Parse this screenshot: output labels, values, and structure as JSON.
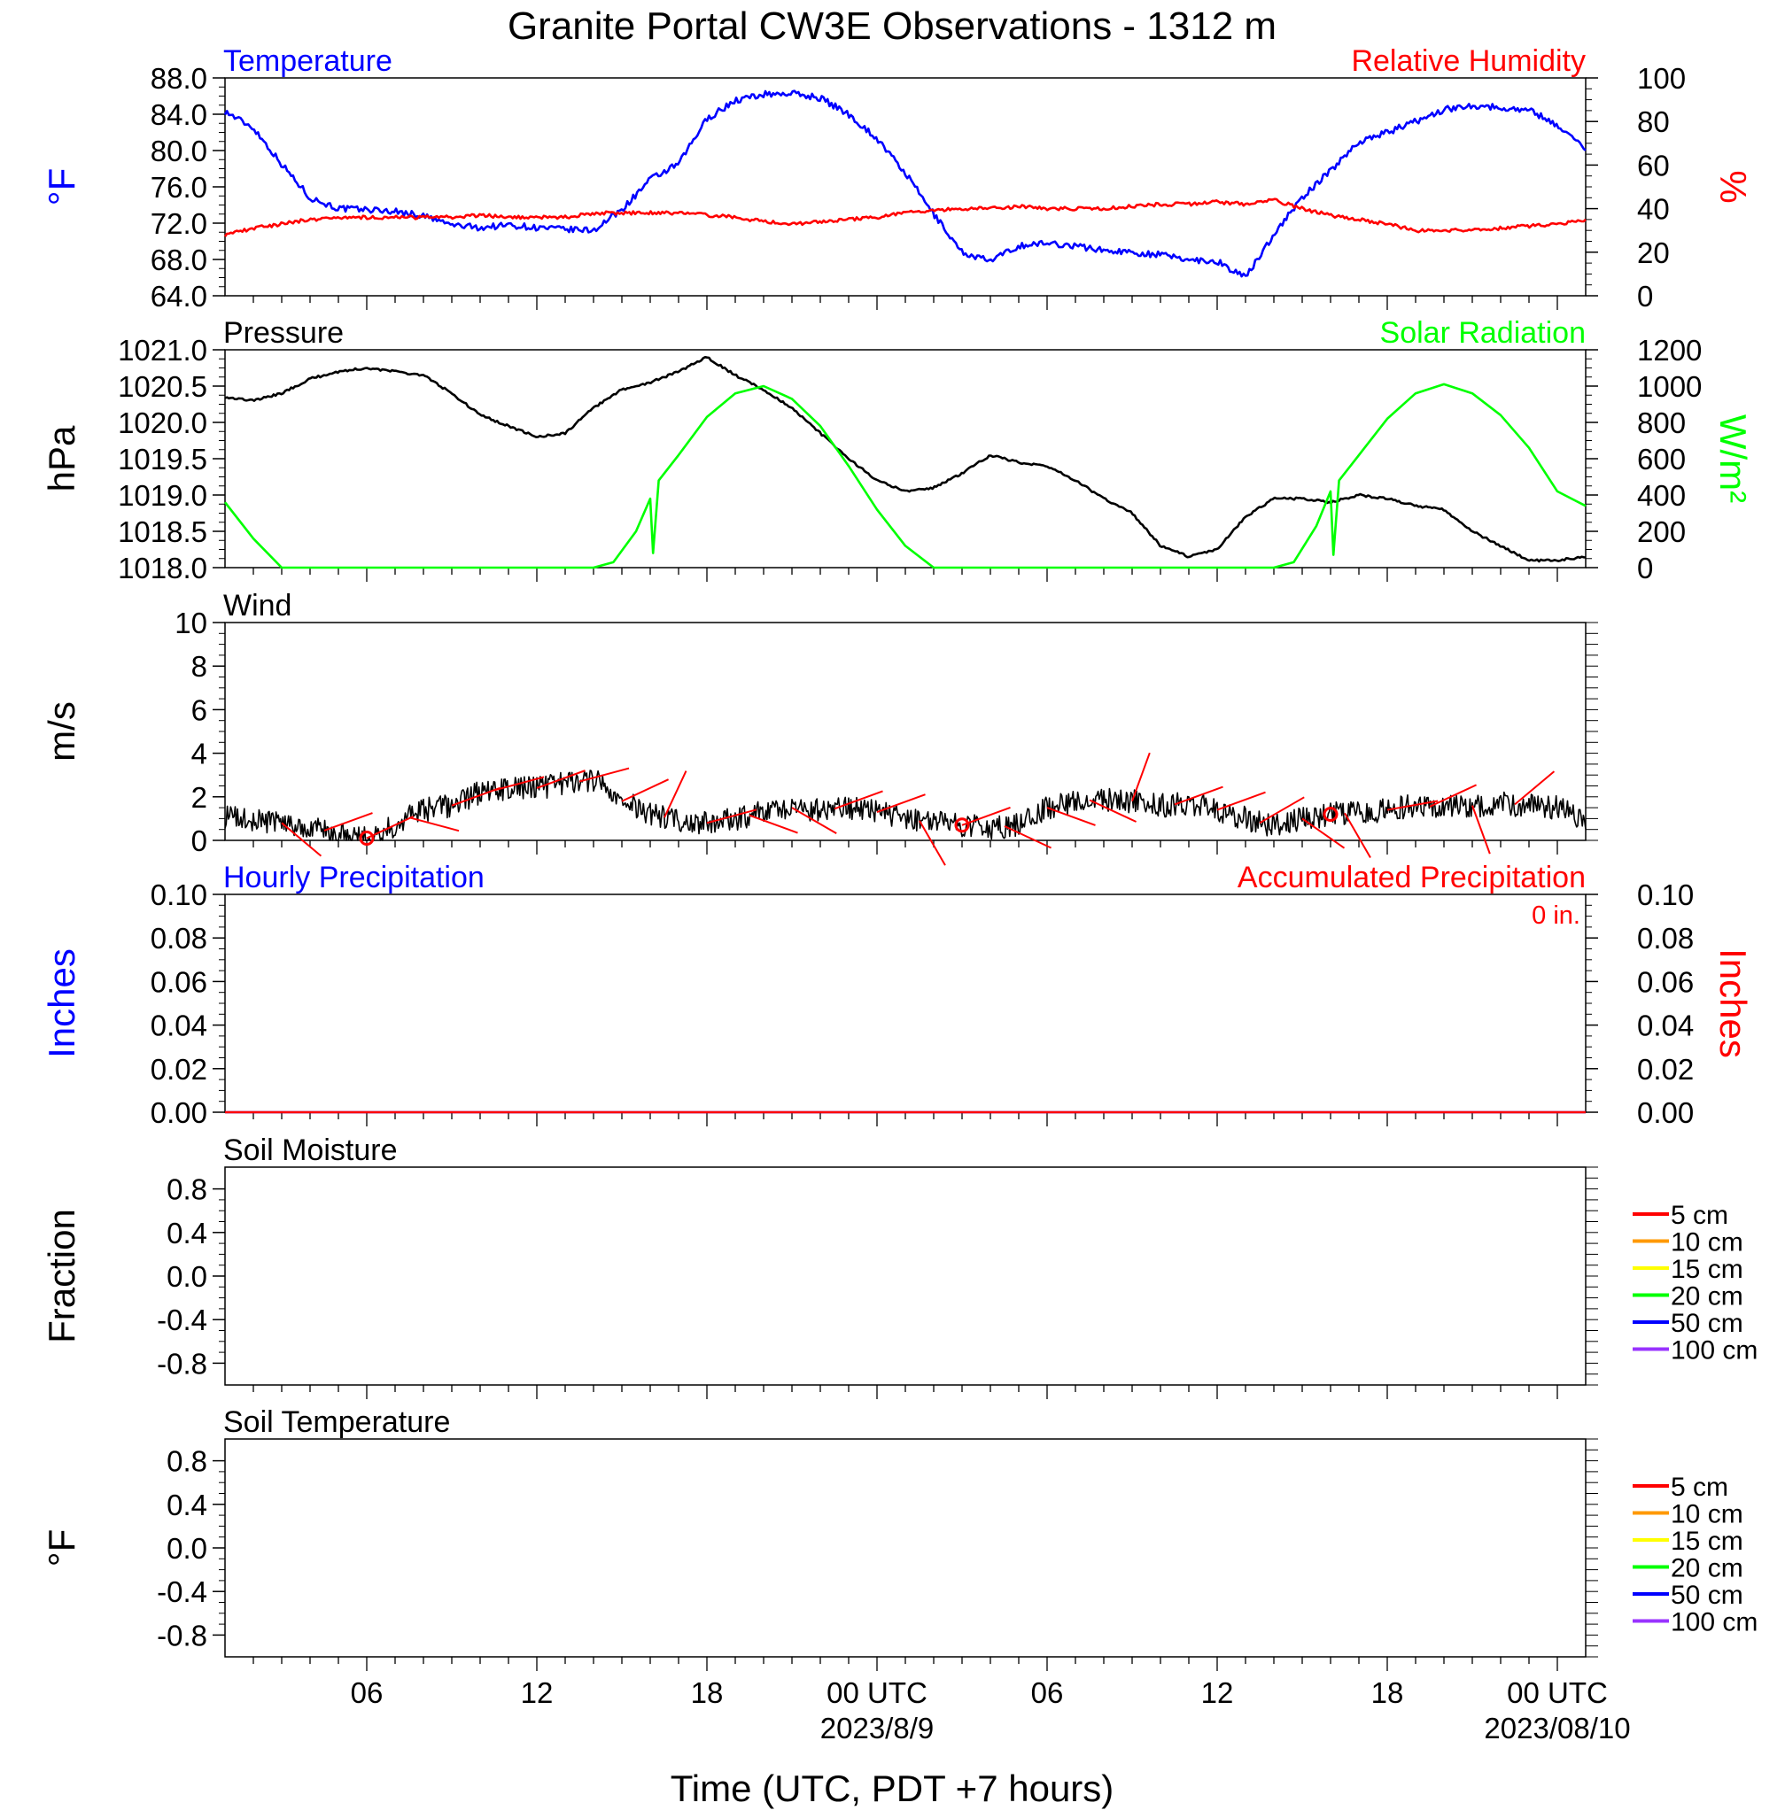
{
  "title": "Granite Portal CW3E Observations - 1312 m",
  "xlabel": "Time (UTC, PDT +7 hours)",
  "x_ticks": [
    {
      "hour": 5,
      "label": "06",
      "sub": ""
    },
    {
      "hour": 11,
      "label": "12",
      "sub": ""
    },
    {
      "hour": 17,
      "label": "18",
      "sub": ""
    },
    {
      "hour": 23,
      "label": "00 UTC",
      "sub": "2023/8/9"
    },
    {
      "hour": 29,
      "label": "06",
      "sub": ""
    },
    {
      "hour": 35,
      "label": "12",
      "sub": ""
    },
    {
      "hour": 41,
      "label": "18",
      "sub": ""
    },
    {
      "hour": 47,
      "label": "00 UTC",
      "sub": "2023/08/10"
    }
  ],
  "colors": {
    "temperature": "#0000ff",
    "humidity": "#ff0000",
    "pressure": "#000000",
    "solar": "#00ff00",
    "wind": "#000000",
    "barbs": "#ff0000",
    "precip_hourly": "#0000ff",
    "precip_accum": "#ff0000"
  },
  "chart_data": [
    {
      "type": "line",
      "panel": "temperature-humidity",
      "title_left": "Temperature",
      "title_right": "Relative Humidity",
      "ylabel_left": "°F",
      "ylabel_right": "%",
      "xlim": [
        0,
        48
      ],
      "ylim_left": [
        64.0,
        88.0
      ],
      "ylim_right": [
        0,
        100
      ],
      "ticks_left": [
        "64.0",
        "68.0",
        "72.0",
        "76.0",
        "80.0",
        "84.0",
        "88.0"
      ],
      "ticks_right": [
        "0",
        "20",
        "40",
        "60",
        "80",
        "100"
      ],
      "series": [
        {
          "name": "Temperature",
          "axis": "left",
          "x": [
            0,
            1,
            2,
            3,
            4,
            5,
            6,
            7,
            8,
            9,
            10,
            11,
            12,
            13,
            14,
            15,
            16,
            17,
            18,
            19,
            20,
            21,
            22,
            23,
            24,
            25,
            26,
            27,
            28,
            29,
            30,
            31,
            32,
            33,
            34,
            35,
            36,
            37,
            38,
            39,
            40,
            41,
            42,
            43,
            44,
            45,
            46,
            47,
            48
          ],
          "y": [
            84.3,
            82.5,
            78.5,
            74.8,
            73.6,
            73.5,
            73.3,
            72.8,
            71.8,
            71.5,
            71.8,
            71.5,
            71.3,
            71.2,
            73.5,
            76.8,
            78.5,
            83.5,
            85.5,
            86.2,
            86.3,
            85.8,
            84.0,
            81.3,
            77.5,
            73.0,
            68.8,
            67.8,
            69.5,
            69.8,
            69.5,
            69.0,
            68.8,
            68.5,
            68.0,
            67.8,
            66.0,
            70.8,
            74.8,
            77.8,
            81.0,
            82.0,
            83.2,
            84.5,
            85.0,
            84.7,
            84.5,
            82.8,
            80.2
          ]
        },
        {
          "name": "Relative Humidity",
          "axis": "right",
          "x": [
            0,
            1,
            2,
            3,
            4,
            5,
            6,
            7,
            8,
            9,
            10,
            11,
            12,
            13,
            14,
            15,
            16,
            17,
            18,
            19,
            20,
            21,
            22,
            23,
            24,
            25,
            26,
            27,
            28,
            29,
            30,
            31,
            32,
            33,
            34,
            35,
            36,
            37,
            38,
            39,
            40,
            41,
            42,
            43,
            44,
            45,
            46,
            47,
            48
          ],
          "y": [
            28,
            31,
            33,
            35,
            36,
            36,
            36,
            36,
            36,
            37,
            36,
            36,
            36,
            38,
            38,
            38,
            38,
            37,
            36,
            34,
            33,
            34,
            35,
            36,
            38,
            39,
            40,
            40,
            41,
            40,
            40,
            40,
            41,
            42,
            42,
            43,
            42,
            44,
            40,
            37,
            35,
            33,
            30,
            30,
            30,
            31,
            32,
            33,
            35
          ]
        }
      ]
    },
    {
      "type": "line",
      "panel": "pressure-solar",
      "title_left": "Pressure",
      "title_right": "Solar Radiation",
      "ylabel_left": "hPa",
      "ylabel_right": "W/m²",
      "xlim": [
        0,
        48
      ],
      "ylim_left": [
        1018.0,
        1021.0
      ],
      "ylim_right": [
        0,
        1200
      ],
      "ticks_left": [
        "1018.0",
        "1018.5",
        "1019.0",
        "1019.5",
        "1020.0",
        "1020.5",
        "1021.0"
      ],
      "ticks_right": [
        "0",
        "200",
        "400",
        "600",
        "800",
        "1000",
        "1200"
      ],
      "series": [
        {
          "name": "Pressure",
          "axis": "left",
          "x": [
            0,
            1,
            2,
            3,
            4,
            5,
            6,
            7,
            8,
            9,
            10,
            11,
            12,
            13,
            14,
            15,
            16,
            17,
            18,
            19,
            20,
            21,
            22,
            23,
            24,
            25,
            26,
            27,
            28,
            29,
            30,
            31,
            32,
            33,
            34,
            35,
            36,
            37,
            38,
            39,
            40,
            41,
            42,
            43,
            44,
            45,
            46,
            47,
            48
          ],
          "y": [
            1020.35,
            1020.3,
            1020.4,
            1020.6,
            1020.7,
            1020.75,
            1020.7,
            1020.65,
            1020.4,
            1020.1,
            1019.95,
            1019.8,
            1019.85,
            1020.2,
            1020.45,
            1020.55,
            1020.7,
            1020.9,
            1020.65,
            1020.45,
            1020.2,
            1019.85,
            1019.5,
            1019.2,
            1019.05,
            1019.1,
            1019.3,
            1019.55,
            1019.45,
            1019.4,
            1019.2,
            1018.95,
            1018.75,
            1018.3,
            1018.15,
            1018.25,
            1018.7,
            1018.95,
            1018.95,
            1018.9,
            1019.0,
            1018.95,
            1018.85,
            1018.8,
            1018.5,
            1018.3,
            1018.1,
            1018.1,
            1018.15
          ]
        },
        {
          "name": "Solar Radiation",
          "axis": "right",
          "x": [
            0,
            1,
            2,
            13,
            13.7,
            14.5,
            15,
            15.1,
            15.3,
            16,
            17,
            18,
            19,
            20,
            21,
            22,
            23,
            24,
            25,
            26,
            37,
            37.7,
            38.5,
            39,
            39.1,
            39.3,
            40,
            41,
            42,
            43,
            44,
            45,
            46,
            47,
            48
          ],
          "y": [
            360,
            160,
            0,
            0,
            30,
            200,
            380,
            80,
            480,
            620,
            830,
            960,
            1000,
            930,
            780,
            560,
            320,
            120,
            0,
            0,
            0,
            30,
            230,
            420,
            70,
            480,
            620,
            820,
            960,
            1010,
            960,
            840,
            660,
            420,
            340
          ]
        }
      ]
    },
    {
      "type": "line",
      "panel": "wind",
      "title_left": "Wind",
      "ylabel_left": "m/s",
      "xlim": [
        0,
        48
      ],
      "ylim_left": [
        0,
        10
      ],
      "ticks_left": [
        "0",
        "2",
        "4",
        "6",
        "8",
        "10"
      ],
      "series": [
        {
          "name": "Wind",
          "axis": "left",
          "x": [
            0,
            1,
            2,
            3,
            4,
            5,
            6,
            7,
            8,
            9,
            10,
            11,
            12,
            13,
            14,
            15,
            16,
            17,
            18,
            19,
            20,
            21,
            22,
            23,
            24,
            25,
            26,
            27,
            28,
            29,
            30,
            31,
            32,
            33,
            34,
            35,
            36,
            37,
            38,
            39,
            40,
            41,
            42,
            43,
            44,
            45,
            46,
            47,
            48
          ],
          "y": [
            1.1,
            0.9,
            0.8,
            0.6,
            0.3,
            0.1,
            0.7,
            1.4,
            1.6,
            2.2,
            2.4,
            2.4,
            2.6,
            2.8,
            1.8,
            1.2,
            0.9,
            0.8,
            1.0,
            1.3,
            1.5,
            1.4,
            1.5,
            1.3,
            1.0,
            0.8,
            0.7,
            0.6,
            0.7,
            1.5,
            1.8,
            1.9,
            1.8,
            1.6,
            1.7,
            1.4,
            1.0,
            0.6,
            1.0,
            1.2,
            1.3,
            1.4,
            1.6,
            1.5,
            1.6,
            1.7,
            1.6,
            1.5,
            1.0
          ]
        }
      ]
    },
    {
      "type": "line",
      "panel": "precipitation",
      "title_left": "Hourly Precipitation",
      "title_right": "Accumulated Precipitation",
      "annotation": "0 in.",
      "ylabel_left": "Inches",
      "ylabel_right": "Inches",
      "xlim": [
        0,
        48
      ],
      "ylim_left": [
        0.0,
        0.1
      ],
      "ylim_right": [
        0.0,
        0.1
      ],
      "ticks_left": [
        "0.00",
        "0.02",
        "0.04",
        "0.06",
        "0.08",
        "0.10"
      ],
      "ticks_right": [
        "0.00",
        "0.02",
        "0.04",
        "0.06",
        "0.08",
        "0.10"
      ],
      "series": [
        {
          "name": "Hourly Precipitation",
          "axis": "left",
          "x": [
            0,
            48
          ],
          "y": [
            0,
            0
          ]
        },
        {
          "name": "Accumulated Precipitation",
          "axis": "right",
          "x": [
            0,
            48
          ],
          "y": [
            0,
            0
          ]
        }
      ]
    },
    {
      "type": "line",
      "panel": "soil-moisture",
      "title_left": "Soil Moisture",
      "ylabel_left": "Fraction",
      "xlim": [
        0,
        48
      ],
      "ylim_left": [
        -1.0,
        1.0
      ],
      "ticks_left": [
        "-0.8",
        "-0.4",
        "0.0",
        "0.4",
        "0.8"
      ],
      "legend": [
        {
          "label": "5 cm",
          "color": "#ff0000"
        },
        {
          "label": "10 cm",
          "color": "#ff9900"
        },
        {
          "label": "15 cm",
          "color": "#ffff00"
        },
        {
          "label": "20 cm",
          "color": "#00ff00"
        },
        {
          "label": "50 cm",
          "color": "#0000ff"
        },
        {
          "label": "100 cm",
          "color": "#9933ff"
        }
      ],
      "series": []
    },
    {
      "type": "line",
      "panel": "soil-temperature",
      "title_left": "Soil Temperature",
      "ylabel_left": "°F",
      "xlim": [
        0,
        48
      ],
      "ylim_left": [
        -1.0,
        1.0
      ],
      "ticks_left": [
        "-0.8",
        "-0.4",
        "0.0",
        "0.4",
        "0.8"
      ],
      "legend": [
        {
          "label": "5 cm",
          "color": "#ff0000"
        },
        {
          "label": "10 cm",
          "color": "#ff9900"
        },
        {
          "label": "15 cm",
          "color": "#ffff00"
        },
        {
          "label": "20 cm",
          "color": "#00ff00"
        },
        {
          "label": "50 cm",
          "color": "#0000ff"
        },
        {
          "label": "100 cm",
          "color": "#9933ff"
        }
      ],
      "series": []
    }
  ]
}
